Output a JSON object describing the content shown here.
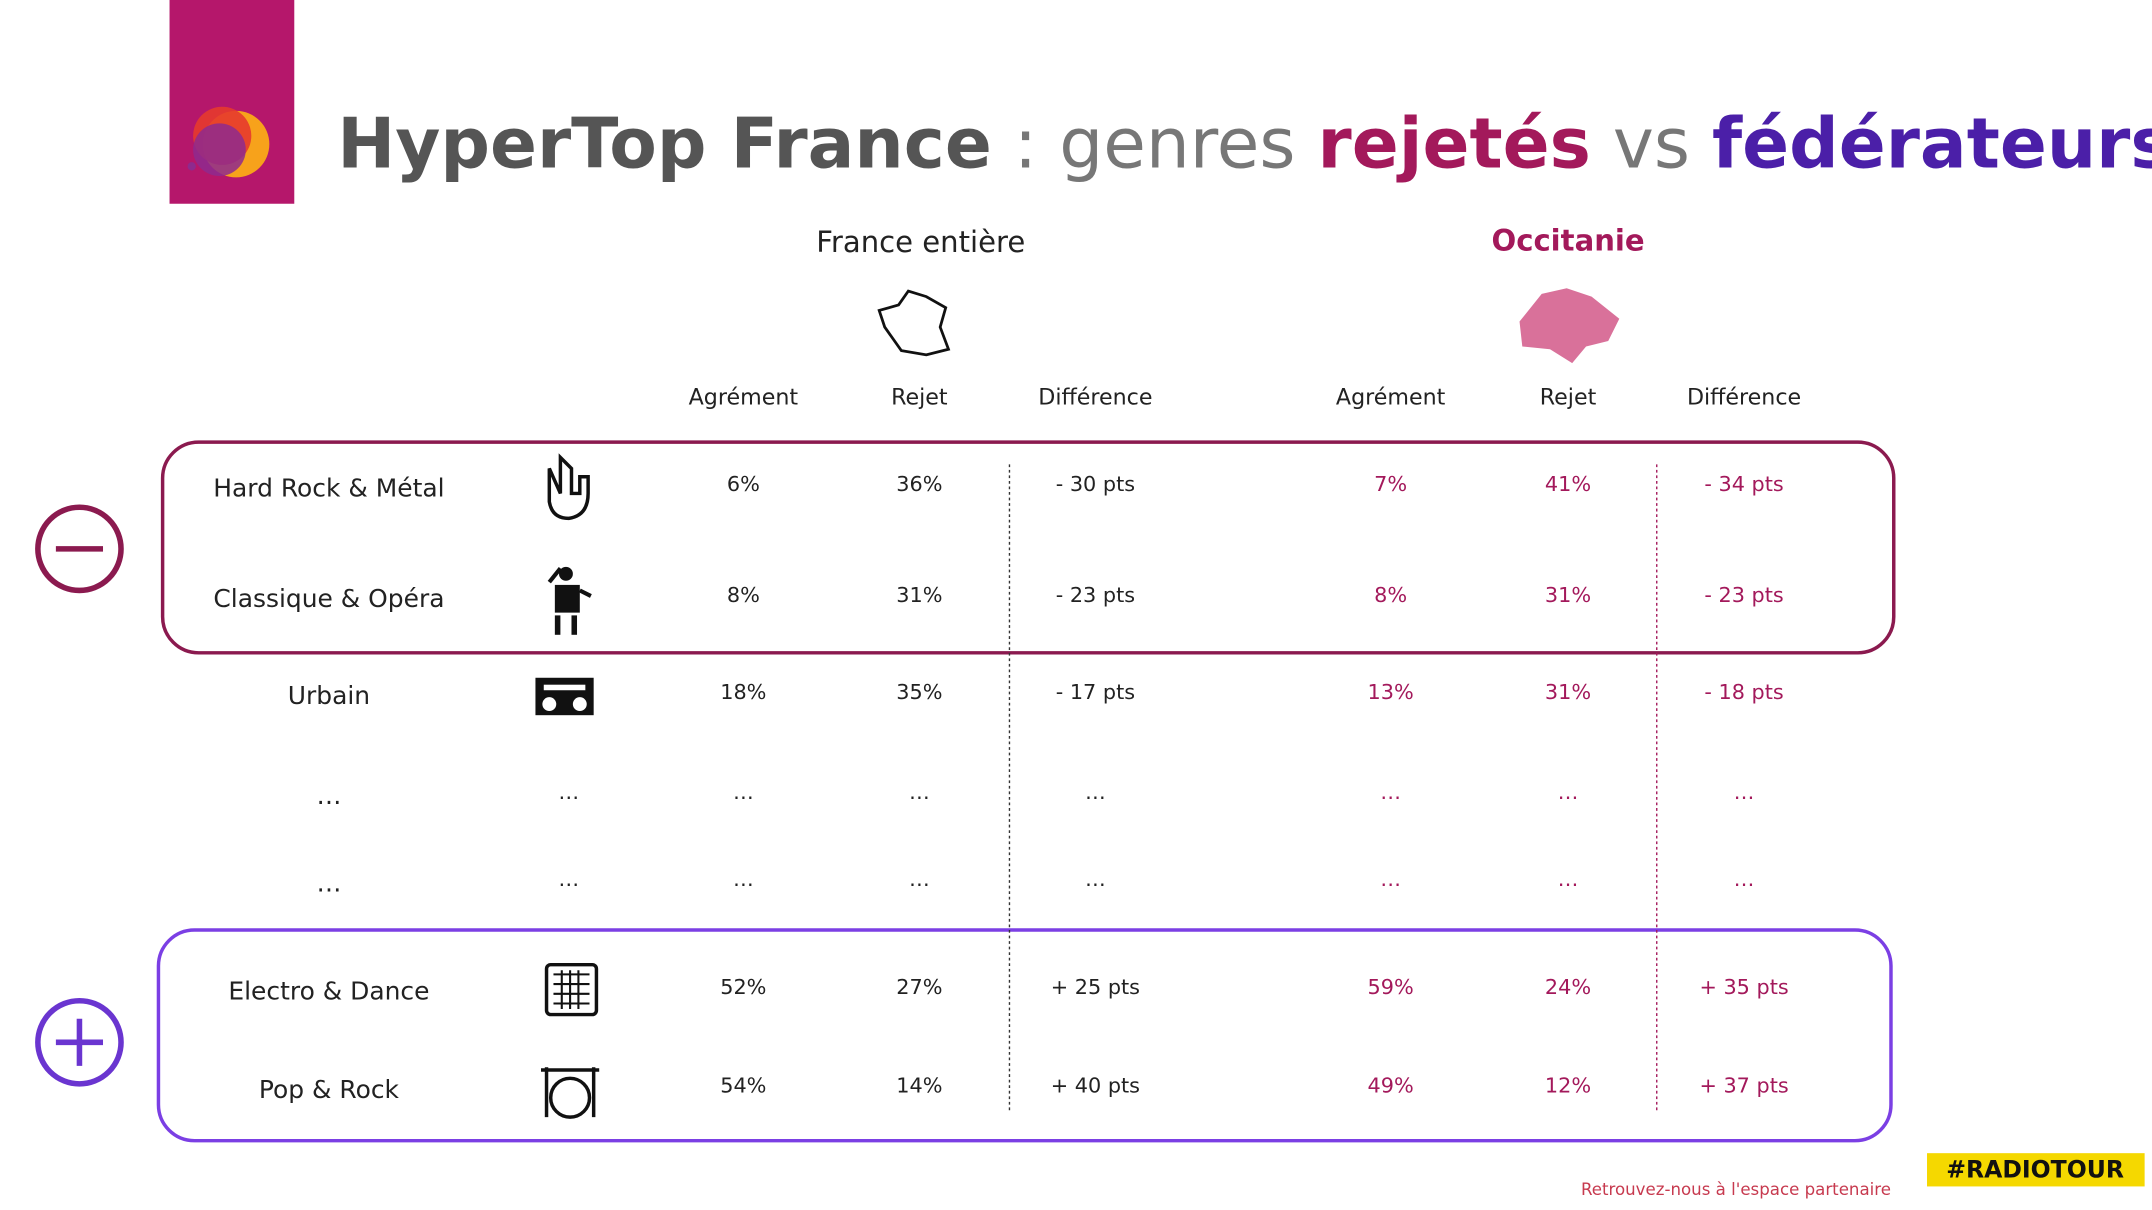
{
  "header": {
    "title": [
      "HyperTop France",
      " : genres ",
      "rejetés",
      " vs ",
      "fédérateurs"
    ]
  },
  "regions": [
    {
      "label": "France entière",
      "headers": [
        "Agrément",
        "Rejet",
        "Différence"
      ]
    },
    {
      "label": "Occitanie",
      "headers": [
        "Agrément",
        "Rejet",
        "Différence"
      ]
    }
  ],
  "table": {
    "rows": [
      [
        "Hard Rock & Métal",
        "6%",
        "36%",
        "- 30 pts",
        "7%",
        "41%",
        "- 34 pts"
      ],
      [
        "Classique & Opéra",
        "8%",
        "31%",
        "- 23 pts",
        "8%",
        "31%",
        "- 23 pts"
      ],
      [
        "Urbain",
        "18%",
        "35%",
        "- 17 pts",
        "13%",
        "31%",
        "- 18 pts"
      ],
      [
        "…",
        "…",
        "…",
        "…",
        "…",
        "…",
        "…",
        "…"
      ],
      [
        "…",
        "…",
        "…",
        "…",
        "…",
        "…",
        "…",
        "…"
      ],
      [
        "Electro & Dance",
        "52%",
        "27%",
        "+ 25 pts",
        "59%",
        "24%",
        "+ 35 pts"
      ],
      [
        "Pop & Rock",
        "54%",
        "14%",
        "+ 40 pts",
        "49%",
        "12%",
        "+ 37 pts"
      ]
    ]
  },
  "footer": {
    "note": "Retrouvez-nous à l'espace partenaire",
    "badge": "#RADIOTOUR"
  }
}
